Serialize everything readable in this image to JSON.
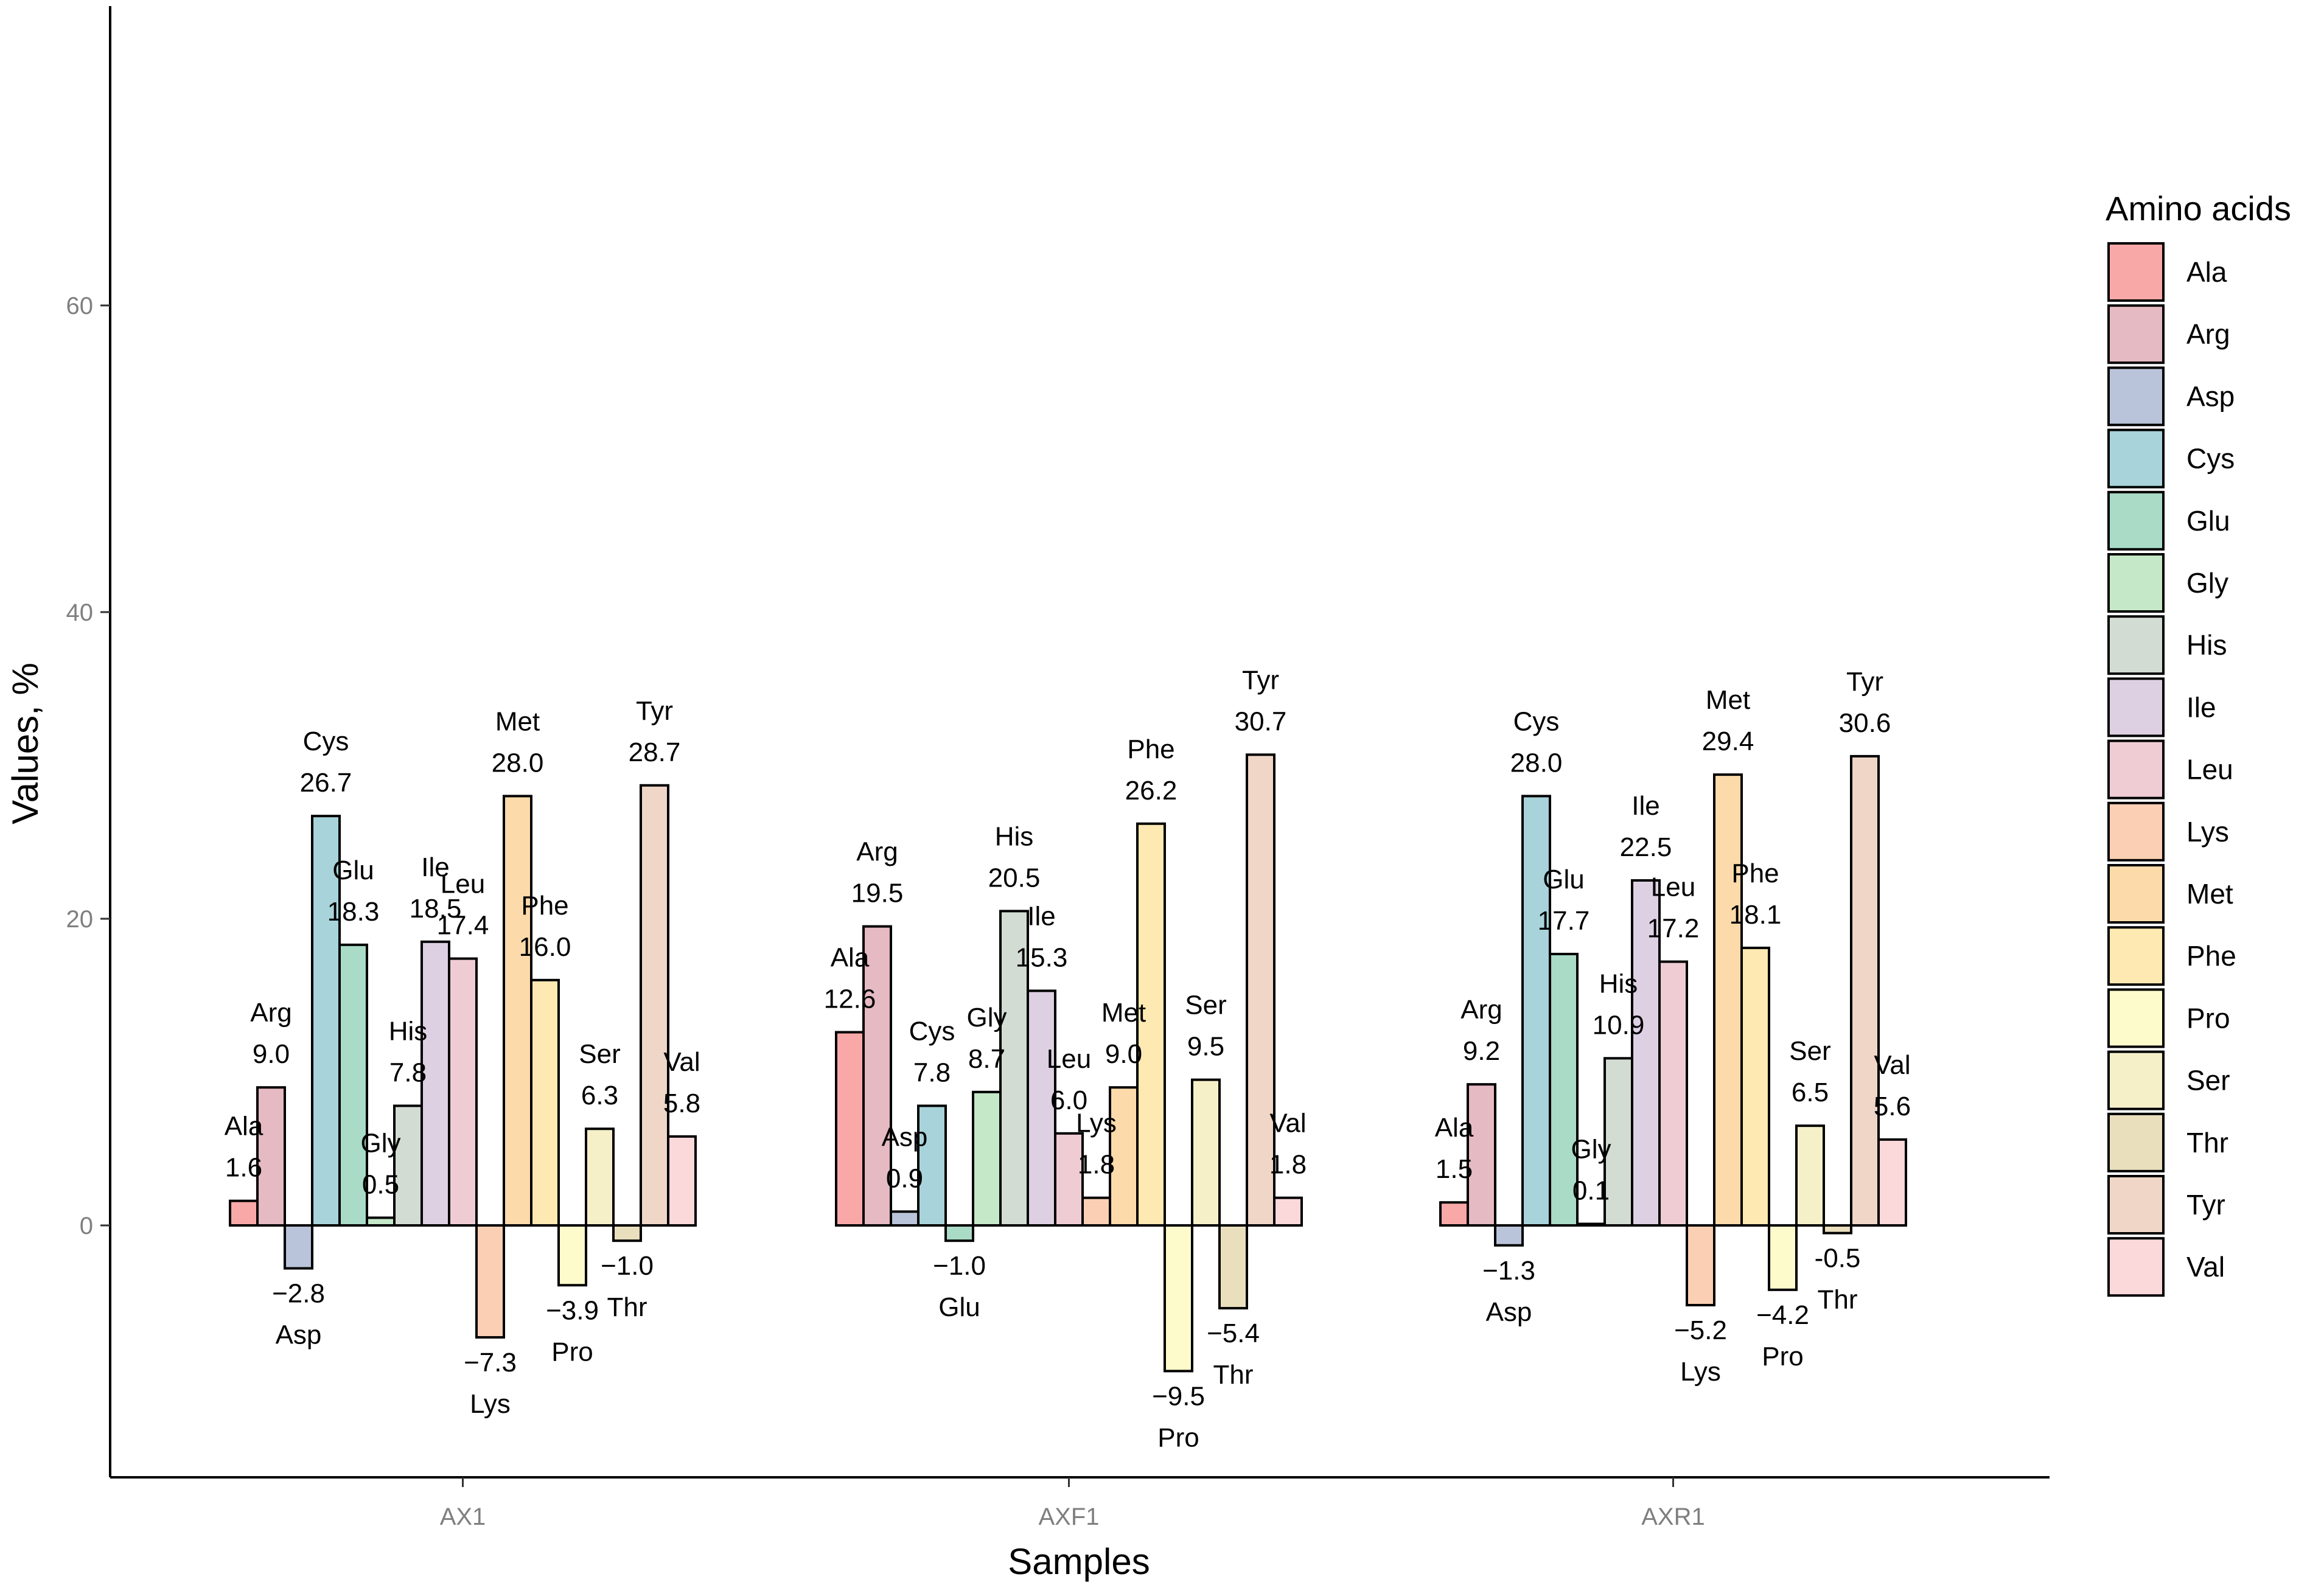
{
  "chart_data": {
    "type": "bar",
    "title": "",
    "xlabel": "Samples",
    "ylabel": "Values, %",
    "ylim": [
      -16.5,
      79
    ],
    "yticks": [
      0,
      20,
      40,
      60
    ],
    "categories": [
      "AX1",
      "AXF1",
      "AXR1"
    ],
    "legend": {
      "title": "Amino acids",
      "position": "right",
      "items": [
        "Ala",
        "Arg",
        "Asp",
        "Cys",
        "Glu",
        "Gly",
        "His",
        "Ile",
        "Leu",
        "Lys",
        "Met",
        "Phe",
        "Pro",
        "Ser",
        "Thr",
        "Tyr",
        "Val"
      ],
      "colors": {
        "Ala": "#f9a8a8",
        "Arg": "#e6bac3",
        "Asp": "#b9c4da",
        "Cys": "#a8d3da",
        "Glu": "#a9dbc7",
        "Gly": "#c4e8c8",
        "His": "#d3dcd3",
        "Ile": "#ded0e3",
        "Leu": "#efccd4",
        "Lys": "#fbcfb3",
        "Met": "#fcdaaa",
        "Phe": "#fde9b1",
        "Pro": "#fdfacb",
        "Ser": "#f6f0c9",
        "Thr": "#eadfbd",
        "Tyr": "#efd6c6",
        "Val": "#fbd8d9"
      }
    },
    "series": [
      {
        "name": "Ala",
        "values": [
          1.6,
          12.6,
          1.5
        ],
        "labels": [
          "1.6",
          "12.6",
          "1.5"
        ]
      },
      {
        "name": "Arg",
        "values": [
          9.0,
          19.5,
          9.2
        ],
        "labels": [
          "9.0",
          "19.5",
          "9.2"
        ]
      },
      {
        "name": "Asp",
        "values": [
          -2.8,
          0.9,
          -1.3
        ],
        "labels": [
          "−2.8",
          "0.9",
          "−1.3"
        ]
      },
      {
        "name": "Cys",
        "values": [
          26.7,
          7.8,
          28.0
        ],
        "labels": [
          "26.7",
          "7.8",
          "28.0"
        ]
      },
      {
        "name": "Glu",
        "values": [
          18.3,
          -1.0,
          17.7
        ],
        "labels": [
          "18.3",
          "−1.0",
          "17.7"
        ]
      },
      {
        "name": "Gly",
        "values": [
          0.5,
          8.7,
          0.1
        ],
        "labels": [
          "0.5",
          "8.7",
          "0.1"
        ]
      },
      {
        "name": "His",
        "values": [
          7.8,
          20.5,
          10.9
        ],
        "labels": [
          "7.8",
          "20.5",
          "10.9"
        ]
      },
      {
        "name": "Ile",
        "values": [
          18.5,
          15.3,
          22.5
        ],
        "labels": [
          "18.5",
          "15.3",
          "22.5"
        ]
      },
      {
        "name": "Leu",
        "values": [
          17.4,
          6.0,
          17.2
        ],
        "labels": [
          "17.4",
          "6.0",
          "17.2"
        ]
      },
      {
        "name": "Lys",
        "values": [
          -7.3,
          1.8,
          -5.2
        ],
        "labels": [
          "−7.3",
          "1.8",
          "−5.2"
        ]
      },
      {
        "name": "Met",
        "values": [
          28.0,
          9.0,
          29.4
        ],
        "labels": [
          "28.0",
          "9.0",
          "29.4"
        ]
      },
      {
        "name": "Phe",
        "values": [
          16.0,
          26.2,
          18.1
        ],
        "labels": [
          "16.0",
          "26.2",
          "18.1"
        ]
      },
      {
        "name": "Pro",
        "values": [
          -3.9,
          -9.5,
          -4.2
        ],
        "labels": [
          "−3.9",
          "−9.5",
          "−4.2"
        ]
      },
      {
        "name": "Ser",
        "values": [
          6.3,
          9.5,
          6.5
        ],
        "labels": [
          "6.3",
          "9.5",
          "6.5"
        ]
      },
      {
        "name": "Thr",
        "values": [
          -1.0,
          -5.4,
          -0.5
        ],
        "labels": [
          "−1.0",
          "−5.4",
          "-0.5"
        ]
      },
      {
        "name": "Tyr",
        "values": [
          28.7,
          30.7,
          30.6
        ],
        "labels": [
          "28.7",
          "30.7",
          "30.6"
        ]
      },
      {
        "name": "Val",
        "values": [
          5.8,
          1.8,
          5.6
        ],
        "labels": [
          "5.8",
          "1.8",
          "5.6"
        ]
      }
    ]
  }
}
